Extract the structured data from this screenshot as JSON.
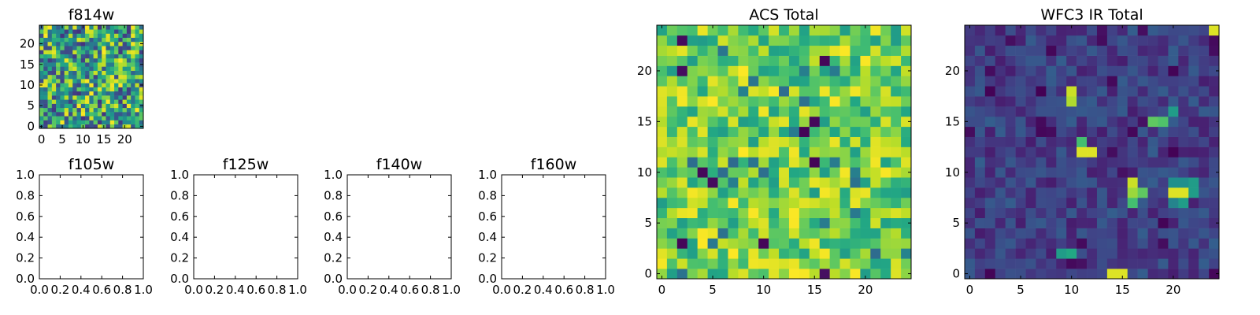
{
  "chart_data": [
    {
      "type": "heatmap",
      "title": "f814w",
      "grid_size": 25,
      "x_ticks": [
        "0",
        "5",
        "10",
        "15",
        "20"
      ],
      "y_ticks": [
        "0",
        "5",
        "10",
        "15",
        "20"
      ],
      "xlim": [
        -0.5,
        24.5
      ],
      "ylim": [
        -0.5,
        24.5
      ],
      "colormap": "viridis",
      "value_range": [
        0,
        1
      ],
      "seed": 11,
      "distribution": "noise",
      "values_note": "per-pixel values are visually random; sampled pattern"
    },
    {
      "type": "empty",
      "title": "f105w",
      "x_ticks": [
        "0.0",
        "0.2",
        "0.4",
        "0.6",
        "0.8",
        "1.0"
      ],
      "y_ticks": [
        "0.0",
        "0.2",
        "0.4",
        "0.6",
        "0.8",
        "1.0"
      ],
      "xlim": [
        0,
        1
      ],
      "ylim": [
        0,
        1
      ]
    },
    {
      "type": "empty",
      "title": "f125w",
      "x_ticks": [
        "0.0",
        "0.2",
        "0.4",
        "0.6",
        "0.8",
        "1.0"
      ],
      "y_ticks": [
        "0.0",
        "0.2",
        "0.4",
        "0.6",
        "0.8",
        "1.0"
      ],
      "xlim": [
        0,
        1
      ],
      "ylim": [
        0,
        1
      ]
    },
    {
      "type": "empty",
      "title": "f140w",
      "x_ticks": [
        "0.0",
        "0.2",
        "0.4",
        "0.6",
        "0.8",
        "1.0"
      ],
      "y_ticks": [
        "0.0",
        "0.2",
        "0.4",
        "0.6",
        "0.8",
        "1.0"
      ],
      "xlim": [
        0,
        1
      ],
      "ylim": [
        0,
        1
      ]
    },
    {
      "type": "empty",
      "title": "f160w",
      "x_ticks": [
        "0.0",
        "0.2",
        "0.4",
        "0.6",
        "0.8",
        "1.0"
      ],
      "y_ticks": [
        "0.0",
        "0.2",
        "0.4",
        "0.6",
        "0.8",
        "1.0"
      ],
      "xlim": [
        0,
        1
      ],
      "ylim": [
        0,
        1
      ]
    },
    {
      "type": "heatmap",
      "title": "ACS Total",
      "grid_size": 25,
      "x_ticks": [
        "0",
        "5",
        "10",
        "15",
        "20"
      ],
      "y_ticks": [
        "0",
        "5",
        "10",
        "15",
        "20"
      ],
      "xlim": [
        -0.5,
        24.5
      ],
      "ylim": [
        -0.5,
        24.5
      ],
      "colormap": "viridis",
      "value_range": [
        0,
        1
      ],
      "seed": 37,
      "distribution": "high",
      "values_note": "mostly green-yellow pixels with a few dark outliers; sampled pattern"
    },
    {
      "type": "heatmap",
      "title": "WFC3 IR Total",
      "grid_size": 25,
      "x_ticks": [
        "0",
        "5",
        "10",
        "15",
        "20"
      ],
      "y_ticks": [
        "0",
        "5",
        "10",
        "15",
        "20"
      ],
      "xlim": [
        -0.5,
        24.5
      ],
      "ylim": [
        -0.5,
        24.5
      ],
      "colormap": "viridis",
      "value_range": [
        0,
        1
      ],
      "seed": 73,
      "distribution": "low",
      "bright_pixels": [
        {
          "x": 24,
          "y": 24,
          "v": 0.95
        },
        {
          "x": 10,
          "y": 18,
          "v": 0.92
        },
        {
          "x": 10,
          "y": 17,
          "v": 0.88
        },
        {
          "x": 18,
          "y": 15,
          "v": 0.75
        },
        {
          "x": 19,
          "y": 15,
          "v": 0.72
        },
        {
          "x": 20,
          "y": 16,
          "v": 0.55
        },
        {
          "x": 11,
          "y": 13,
          "v": 0.7
        },
        {
          "x": 11,
          "y": 12,
          "v": 0.95
        },
        {
          "x": 12,
          "y": 12,
          "v": 0.95
        },
        {
          "x": 16,
          "y": 9,
          "v": 0.92
        },
        {
          "x": 16,
          "y": 8,
          "v": 0.85
        },
        {
          "x": 17,
          "y": 8,
          "v": 0.75
        },
        {
          "x": 16,
          "y": 7,
          "v": 0.7
        },
        {
          "x": 20,
          "y": 8,
          "v": 0.95
        },
        {
          "x": 21,
          "y": 8,
          "v": 0.95
        },
        {
          "x": 22,
          "y": 9,
          "v": 0.55
        },
        {
          "x": 22,
          "y": 8,
          "v": 0.55
        },
        {
          "x": 20,
          "y": 9,
          "v": 0.5
        },
        {
          "x": 21,
          "y": 9,
          "v": 0.5
        },
        {
          "x": 21,
          "y": 7,
          "v": 0.55
        },
        {
          "x": 20,
          "y": 7,
          "v": 0.45
        },
        {
          "x": 9,
          "y": 2,
          "v": 0.55
        },
        {
          "x": 10,
          "y": 2,
          "v": 0.6
        },
        {
          "x": 14,
          "y": 0,
          "v": 0.95
        },
        {
          "x": 15,
          "y": 0,
          "v": 0.95
        }
      ],
      "values_note": "mostly dark blue-purple background with a few bright sources; sampled pattern"
    }
  ]
}
